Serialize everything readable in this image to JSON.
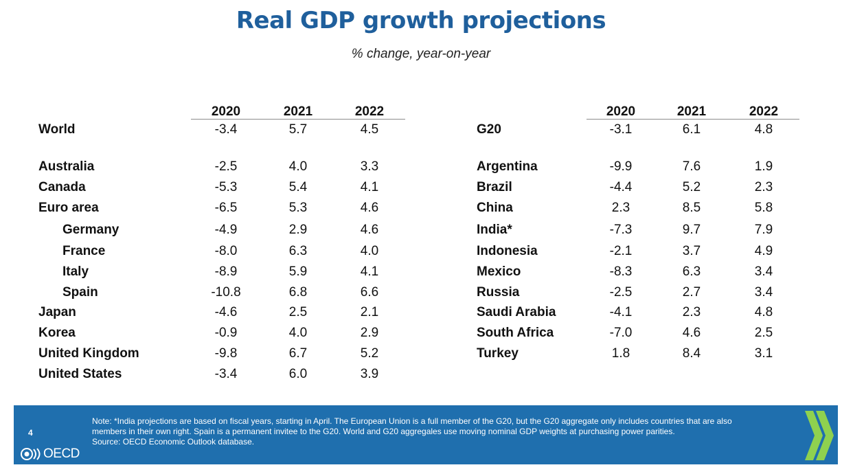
{
  "title": "Real GDP growth projections",
  "subtitle": "% change, year-on-year",
  "years": [
    "2020",
    "2021",
    "2022"
  ],
  "left_table": {
    "rows": [
      {
        "name": "World",
        "v": [
          "-3.4",
          "5.7",
          "4.5"
        ],
        "indent": false
      },
      {
        "name": "Australia",
        "v": [
          "-2.5",
          "4.0",
          "3.3"
        ],
        "indent": false
      },
      {
        "name": "Canada",
        "v": [
          "-5.3",
          "5.4",
          "4.1"
        ],
        "indent": false
      },
      {
        "name": "Euro area",
        "v": [
          "-6.5",
          "5.3",
          "4.6"
        ],
        "indent": false
      },
      {
        "name": "Germany",
        "v": [
          "-4.9",
          "2.9",
          "4.6"
        ],
        "indent": true
      },
      {
        "name": "France",
        "v": [
          "-8.0",
          "6.3",
          "4.0"
        ],
        "indent": true
      },
      {
        "name": "Italy",
        "v": [
          "-8.9",
          "5.9",
          "4.1"
        ],
        "indent": true
      },
      {
        "name": "Spain",
        "v": [
          "-10.8",
          "6.8",
          "6.6"
        ],
        "indent": true
      },
      {
        "name": "Japan",
        "v": [
          "-4.6",
          "2.5",
          "2.1"
        ],
        "indent": false
      },
      {
        "name": "Korea",
        "v": [
          "-0.9",
          "4.0",
          "2.9"
        ],
        "indent": false
      },
      {
        "name": "United Kingdom",
        "v": [
          "-9.8",
          "6.7",
          "5.2"
        ],
        "indent": false
      },
      {
        "name": "United States",
        "v": [
          "-3.4",
          "6.0",
          "3.9"
        ],
        "indent": false
      }
    ]
  },
  "right_table": {
    "rows": [
      {
        "name": "G20",
        "v": [
          "-3.1",
          "6.1",
          "4.8"
        ]
      },
      {
        "name": "Argentina",
        "v": [
          "-9.9",
          "7.6",
          "1.9"
        ]
      },
      {
        "name": "Brazil",
        "v": [
          "-4.4",
          "5.2",
          "2.3"
        ]
      },
      {
        "name": "China",
        "v": [
          "2.3",
          "8.5",
          "5.8"
        ]
      },
      {
        "name": "India*",
        "v": [
          "-7.3",
          "9.7",
          "7.9"
        ]
      },
      {
        "name": "Indonesia",
        "v": [
          "-2.1",
          "3.7",
          "4.9"
        ]
      },
      {
        "name": "Mexico",
        "v": [
          "-8.3",
          "6.3",
          "3.4"
        ]
      },
      {
        "name": "Russia",
        "v": [
          "-2.5",
          "2.7",
          "3.4"
        ]
      },
      {
        "name": "Saudi Arabia",
        "v": [
          "-4.1",
          "2.3",
          "4.8"
        ]
      },
      {
        "name": "South Africa",
        "v": [
          "-7.0",
          "4.6",
          "2.5"
        ]
      },
      {
        "name": "Turkey",
        "v": [
          "1.8",
          "8.4",
          "3.1"
        ]
      }
    ]
  },
  "footer": {
    "page_number": "4",
    "note_line1": "Note: *India projections are based on fiscal years, starting in April. The European Union is a full member of the G20, but the G20 aggregate only includes countries that are also",
    "note_line2": "members in their own right. Spain is a permanent invitee to the G20. World and G20 aggregales use moving nominal GDP weights at purchasing power parities.",
    "source": "Source: OECD Economic Outlook database.",
    "logo_text": "OECD",
    "colors": {
      "band": "#1f6fae",
      "chevron": "#8fd14f"
    }
  },
  "colors": {
    "title": "#1f5f9c"
  }
}
